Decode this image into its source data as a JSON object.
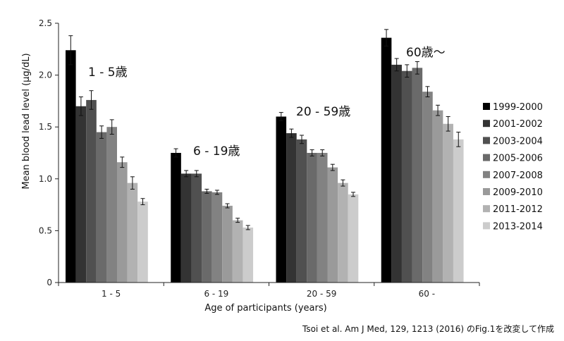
{
  "chart_data": {
    "type": "bar",
    "xlabel": "Age of participants (years)",
    "ylabel": "Mean blood lead level (μg/dL)",
    "ylim": [
      0,
      2.5
    ],
    "yticks": [
      "0",
      "0.5",
      "1.0",
      "1.5",
      "2.0",
      "2.5"
    ],
    "grid": false,
    "legend_position": "right",
    "categories": [
      "1 - 5",
      "6 - 19",
      "20 - 59",
      "60 -"
    ],
    "annotations": [
      "1 - 5歳",
      "6 - 19歳",
      "20 - 59歳",
      "60歳〜"
    ],
    "series": [
      {
        "name": "1999-2000",
        "color": "#000000",
        "values": [
          2.24,
          1.25,
          1.6,
          2.36
        ],
        "errors": [
          0.14,
          0.04,
          0.04,
          0.08
        ]
      },
      {
        "name": "2001-2002",
        "color": "#333333",
        "values": [
          1.7,
          1.05,
          1.44,
          2.1
        ],
        "errors": [
          0.09,
          0.03,
          0.04,
          0.06
        ]
      },
      {
        "name": "2003-2004",
        "color": "#505050",
        "values": [
          1.76,
          1.05,
          1.38,
          2.04
        ],
        "errors": [
          0.09,
          0.03,
          0.04,
          0.06
        ]
      },
      {
        "name": "2005-2006",
        "color": "#6a6a6a",
        "values": [
          1.45,
          0.88,
          1.25,
          2.07
        ],
        "errors": [
          0.06,
          0.02,
          0.03,
          0.06
        ]
      },
      {
        "name": "2007-2008",
        "color": "#828282",
        "values": [
          1.5,
          0.87,
          1.25,
          1.84
        ],
        "errors": [
          0.07,
          0.02,
          0.03,
          0.05
        ]
      },
      {
        "name": "2009-2010",
        "color": "#9a9a9a",
        "values": [
          1.16,
          0.74,
          1.11,
          1.66
        ],
        "errors": [
          0.05,
          0.02,
          0.03,
          0.05
        ]
      },
      {
        "name": "2011-2012",
        "color": "#b2b2b2",
        "values": [
          0.96,
          0.6,
          0.96,
          1.53
        ],
        "errors": [
          0.06,
          0.02,
          0.03,
          0.07
        ]
      },
      {
        "name": "2013-2014",
        "color": "#cccccc",
        "values": [
          0.78,
          0.53,
          0.85,
          1.38
        ],
        "errors": [
          0.03,
          0.02,
          0.02,
          0.07
        ]
      }
    ],
    "source_note": "Tsoi et al. Am J Med, 129, 1213 (2016) のFig.1を改変して作成"
  }
}
